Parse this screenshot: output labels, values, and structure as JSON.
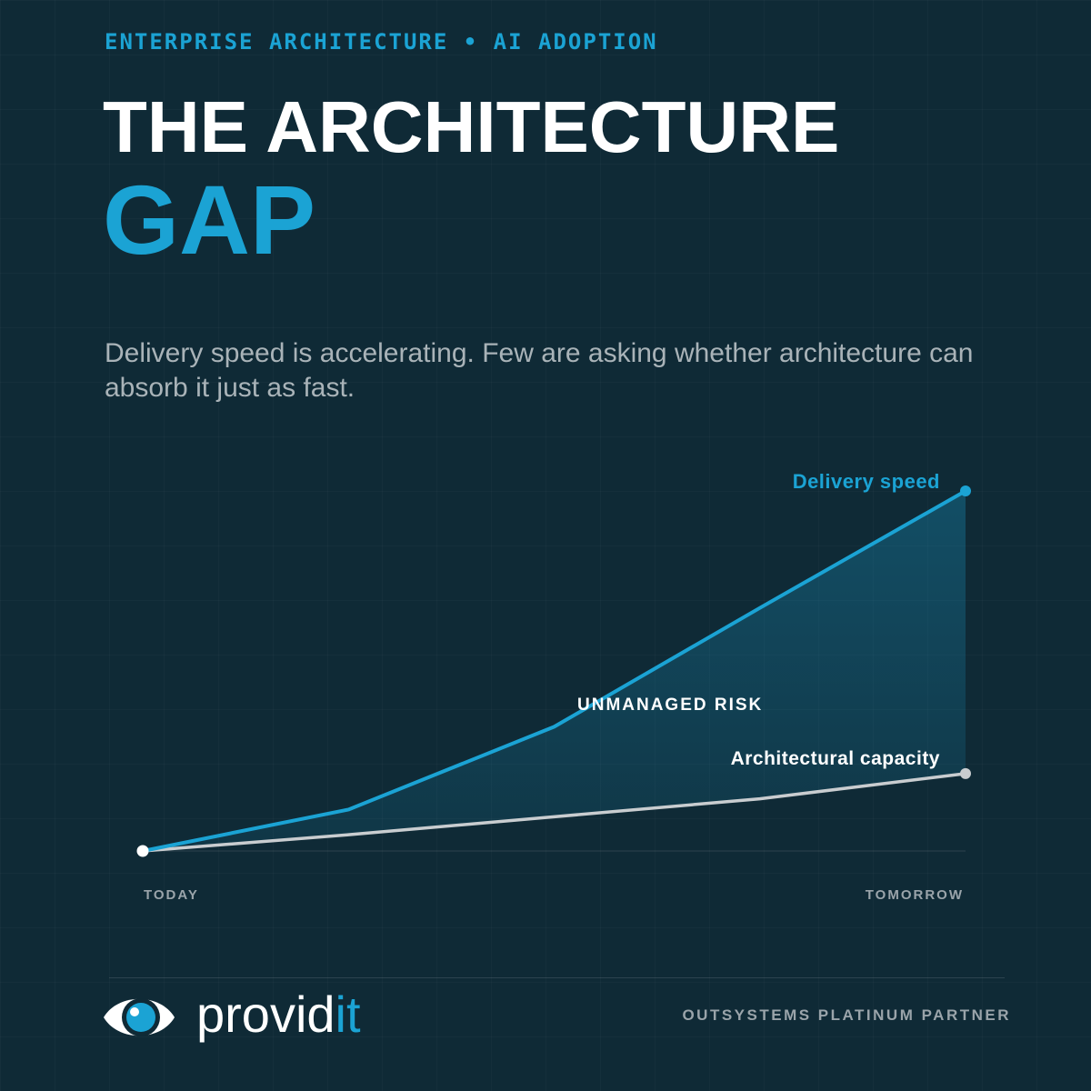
{
  "header": {
    "eyebrow": "ENTERPRISE ARCHITECTURE • AI ADOPTION",
    "title_line1": "THE ARCHITECTURE",
    "title_line2": "GAP",
    "subtitle": "Delivery speed is accelerating. Few are asking whether architecture can absorb it just as fast."
  },
  "chart_data": {
    "type": "area",
    "x": [
      0,
      1,
      2,
      3,
      4
    ],
    "x_labels": [
      "TODAY",
      "TOMORROW"
    ],
    "series": [
      {
        "name": "Delivery speed",
        "values": [
          0,
          11.5,
          34.5,
          67.5,
          100
        ],
        "color": "#1ba3d4"
      },
      {
        "name": "Architectural capacity",
        "values": [
          0,
          4.5,
          9.5,
          14.5,
          21.5
        ],
        "color": "#c9cdd0"
      }
    ],
    "gap_label": "UNMANAGED RISK",
    "ylim": [
      0,
      100
    ],
    "grid": false,
    "colors": {
      "accent": "#1ba3d4",
      "background": "#0f2a36",
      "muted": "#9aa4aa"
    }
  },
  "footer": {
    "brand_main": "provid",
    "brand_accent": "it",
    "partner": "OUTSYSTEMS PLATINUM PARTNER"
  }
}
